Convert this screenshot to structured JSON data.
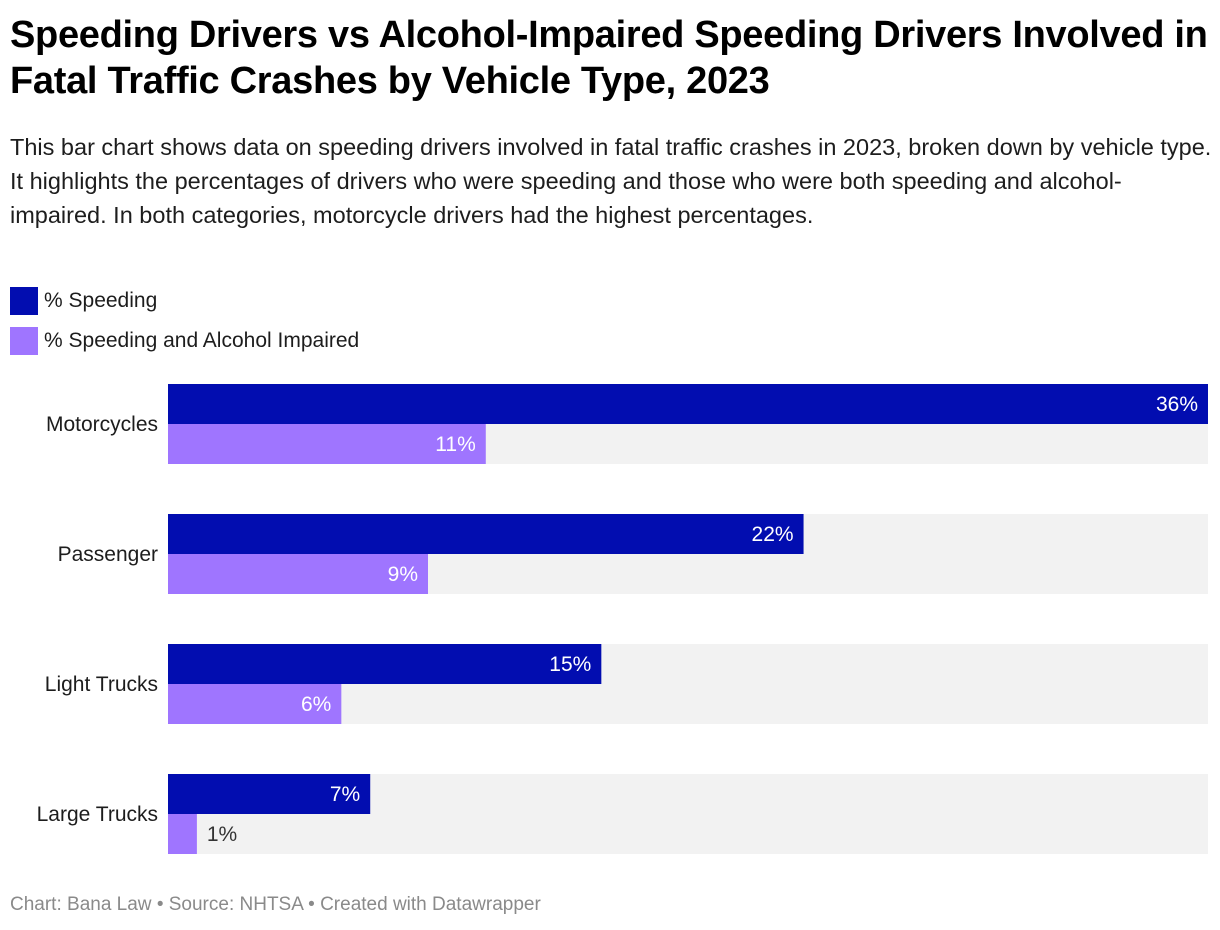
{
  "title": "Speeding Drivers vs Alcohol-Impaired Speeding Drivers Involved in Fatal Traffic Crashes by Vehicle Type, 2023",
  "description": "This bar chart shows data on speeding drivers involved in fatal traffic crashes in 2023, broken down by vehicle type. It highlights the percentages of drivers who were speeding and those who were both speeding and alcohol-impaired. In both categories, motorcycle drivers had the highest percentages.",
  "legend": [
    {
      "label": "% Speeding",
      "color": "#020db0"
    },
    {
      "label": "% Speeding and Alcohol Impaired",
      "color": "#9f75ff"
    }
  ],
  "footer": {
    "chart_credit": "Chart: Bana Law",
    "source": "Source: NHTSA",
    "tool": "Created with Datawrapper",
    "separator": "•"
  },
  "colors": {
    "track": "#f2f2f2",
    "label_inside": "#ffffff",
    "label_outside": "#333333"
  },
  "chart_data": {
    "type": "bar",
    "orientation": "horizontal",
    "title": "Speeding Drivers vs Alcohol-Impaired Speeding Drivers Involved in Fatal Traffic Crashes by Vehicle Type, 2023",
    "xlabel": "",
    "ylabel": "",
    "xlim": [
      0,
      36
    ],
    "grid": false,
    "legend_position": "top-left",
    "categories": [
      "Motorcycles",
      "Passenger",
      "Light Trucks",
      "Large Trucks"
    ],
    "series": [
      {
        "name": "% Speeding",
        "color": "#020db0",
        "values": [
          36,
          22,
          15,
          7
        ],
        "labels": [
          "36%",
          "22%",
          "15%",
          "7%"
        ]
      },
      {
        "name": "% Speeding and Alcohol Impaired",
        "color": "#9f75ff",
        "values": [
          11,
          9,
          6,
          1
        ],
        "labels": [
          "11%",
          "9%",
          "6%",
          "1%"
        ]
      }
    ]
  }
}
